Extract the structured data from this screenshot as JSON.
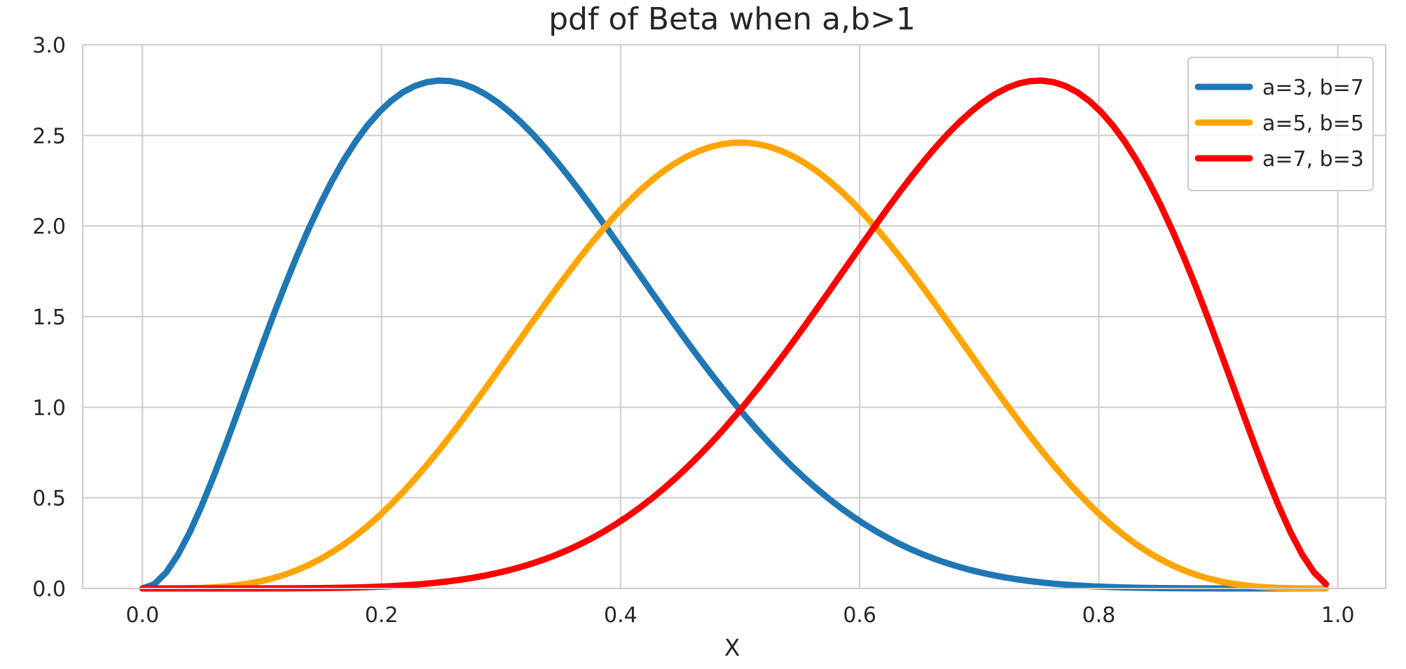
{
  "chart_data": {
    "type": "line",
    "title": "pdf of Beta when a,b>1",
    "xlabel": "X",
    "ylabel": "",
    "xlim": [
      -0.05,
      1.04
    ],
    "ylim": [
      0,
      3.0
    ],
    "xticks": [
      0.0,
      0.2,
      0.4,
      0.6,
      0.8,
      1.0
    ],
    "xtick_labels": [
      "0.0",
      "0.2",
      "0.4",
      "0.6",
      "0.8",
      "1.0"
    ],
    "yticks": [
      0.0,
      0.5,
      1.0,
      1.5,
      2.0,
      2.5,
      3.0
    ],
    "ytick_labels": [
      "0.0",
      "0.5",
      "1.0",
      "1.5",
      "2.0",
      "2.5",
      "3.0"
    ],
    "grid": true,
    "legend_position": "top-right",
    "x_range": [
      0.0,
      0.99
    ],
    "series": [
      {
        "name": "a=3, b=7",
        "a": 3,
        "b": 7,
        "color": "#1f77b4"
      },
      {
        "name": "a=5, b=5",
        "a": 5,
        "b": 5,
        "color": "#ffa500"
      },
      {
        "name": "a=7, b=3",
        "a": 7,
        "b": 3,
        "color": "#ff0000"
      }
    ]
  }
}
